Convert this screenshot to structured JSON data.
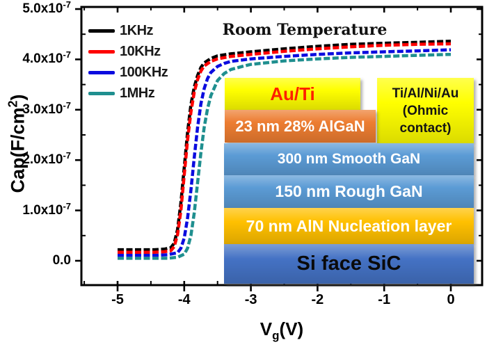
{
  "figure": {
    "title": "Room Temperature",
    "x_axis": {
      "title_main": "V",
      "title_sub": "g",
      "title_close": "(V)",
      "ticks": [
        {
          "v": -5,
          "label": "-5"
        },
        {
          "v": -4,
          "label": "-4"
        },
        {
          "v": -3,
          "label": "-3"
        },
        {
          "v": -2,
          "label": "-2"
        },
        {
          "v": -1,
          "label": "-1"
        },
        {
          "v": 0,
          "label": "0"
        }
      ]
    },
    "y_axis": {
      "title_main": "Cap(F/cm",
      "title_sup": "2",
      "title_close": ")",
      "ticks": [
        {
          "v": 0,
          "main": "0.0",
          "sup": ""
        },
        {
          "v": 1,
          "main": "1.0x10",
          "sup": "-7"
        },
        {
          "v": 2,
          "main": "2.0x10",
          "sup": "-7"
        },
        {
          "v": 3,
          "main": "3.0x10",
          "sup": "-7"
        },
        {
          "v": 4,
          "main": "4.0x10",
          "sup": "-7"
        },
        {
          "v": 5,
          "main": "5.0x10",
          "sup": "-7"
        }
      ]
    },
    "legend": {
      "items": [
        {
          "label": "1KHz",
          "color": "#000000"
        },
        {
          "label": "10KHz",
          "color": "#fe0000"
        },
        {
          "label": "100KHz",
          "color": "#0b0bdf"
        },
        {
          "label": "1MHz",
          "color": "#1f8f8f"
        }
      ]
    }
  },
  "chart_data": {
    "type": "line",
    "title": "Room Temperature",
    "xlabel": "Vg(V)",
    "ylabel": "Cap(F/cm2)",
    "x_units": "V",
    "y_units": "F/cm2 (values in 1e-7)",
    "xlim": [
      -5.54,
      0.47
    ],
    "ylim_1e-7": [
      -0.48,
      5.04
    ],
    "x_ticks": [
      -5,
      -4,
      -3,
      -2,
      -1,
      0
    ],
    "x_minor_ticks": [
      -5.5,
      -4.5,
      -3.5,
      -2.5,
      -1.5,
      -0.5
    ],
    "y_ticks_1e-7": [
      0,
      1,
      2,
      3,
      4,
      5
    ],
    "y_minor_ticks_1e-7": [
      0.5,
      1.5,
      2.5,
      3.5,
      4.5
    ],
    "grid": false,
    "legend_position": "upper-left-inside",
    "series": [
      {
        "name": "1MHz",
        "color": "#1f8f8f",
        "points": [
          [
            -5,
            0.05
          ],
          [
            -4.8,
            0.05
          ],
          [
            -4.6,
            0.05
          ],
          [
            -4.4,
            0.05
          ],
          [
            -4.25,
            0.05
          ],
          [
            -4.1,
            0.07
          ],
          [
            -4,
            0.13
          ],
          [
            -3.95,
            0.25
          ],
          [
            -3.9,
            0.5
          ],
          [
            -3.85,
            0.95
          ],
          [
            -3.8,
            1.55
          ],
          [
            -3.75,
            2.15
          ],
          [
            -3.7,
            2.65
          ],
          [
            -3.65,
            3.02
          ],
          [
            -3.6,
            3.28
          ],
          [
            -3.5,
            3.58
          ],
          [
            -3.4,
            3.72
          ],
          [
            -3.3,
            3.8
          ],
          [
            -3.1,
            3.87
          ],
          [
            -3,
            3.9
          ],
          [
            -2.5,
            3.97
          ],
          [
            -2,
            4.01
          ],
          [
            -1.5,
            4.04
          ],
          [
            -1,
            4.06
          ],
          [
            -0.5,
            4.08
          ],
          [
            0,
            4.1
          ]
        ]
      },
      {
        "name": "100KHz",
        "color": "#0b0bdf",
        "points": [
          [
            -5,
            0.11
          ],
          [
            -4.8,
            0.11
          ],
          [
            -4.6,
            0.11
          ],
          [
            -4.4,
            0.11
          ],
          [
            -4.25,
            0.12
          ],
          [
            -4.1,
            0.16
          ],
          [
            -4.05,
            0.25
          ],
          [
            -4,
            0.45
          ],
          [
            -3.95,
            0.85
          ],
          [
            -3.9,
            1.4
          ],
          [
            -3.85,
            2.05
          ],
          [
            -3.8,
            2.65
          ],
          [
            -3.75,
            3.12
          ],
          [
            -3.7,
            3.42
          ],
          [
            -3.65,
            3.62
          ],
          [
            -3.6,
            3.74
          ],
          [
            -3.5,
            3.86
          ],
          [
            -3.4,
            3.92
          ],
          [
            -3.3,
            3.96
          ],
          [
            -3,
            4.01
          ],
          [
            -2.5,
            4.06
          ],
          [
            -2,
            4.1
          ],
          [
            -1.5,
            4.13
          ],
          [
            -1,
            4.15
          ],
          [
            -0.5,
            4.17
          ],
          [
            0,
            4.19
          ]
        ]
      },
      {
        "name": "1KHz",
        "color": "#000000",
        "points": [
          [
            -5,
            0.22
          ],
          [
            -4.8,
            0.22
          ],
          [
            -4.6,
            0.22
          ],
          [
            -4.45,
            0.22
          ],
          [
            -4.3,
            0.23
          ],
          [
            -4.2,
            0.26
          ],
          [
            -4.15,
            0.35
          ],
          [
            -4.1,
            0.62
          ],
          [
            -4.05,
            1.15
          ],
          [
            -4,
            1.85
          ],
          [
            -3.95,
            2.55
          ],
          [
            -3.9,
            3.1
          ],
          [
            -3.85,
            3.45
          ],
          [
            -3.8,
            3.68
          ],
          [
            -3.75,
            3.84
          ],
          [
            -3.7,
            3.93
          ],
          [
            -3.6,
            4.02
          ],
          [
            -3.5,
            4.07
          ],
          [
            -3.3,
            4.11
          ],
          [
            -3,
            4.15
          ],
          [
            -2.5,
            4.21
          ],
          [
            -2,
            4.26
          ],
          [
            -1.5,
            4.3
          ],
          [
            -1,
            4.32
          ],
          [
            -0.5,
            4.34
          ],
          [
            0,
            4.36
          ]
        ]
      },
      {
        "name": "10KHz",
        "color": "#fe0000",
        "points": [
          [
            -5,
            0.17
          ],
          [
            -4.8,
            0.17
          ],
          [
            -4.6,
            0.17
          ],
          [
            -4.45,
            0.17
          ],
          [
            -4.3,
            0.18
          ],
          [
            -4.2,
            0.2
          ],
          [
            -4.15,
            0.28
          ],
          [
            -4.1,
            0.52
          ],
          [
            -4.05,
            1.0
          ],
          [
            -4,
            1.7
          ],
          [
            -3.95,
            2.4
          ],
          [
            -3.9,
            2.95
          ],
          [
            -3.85,
            3.35
          ],
          [
            -3.8,
            3.6
          ],
          [
            -3.75,
            3.77
          ],
          [
            -3.7,
            3.87
          ],
          [
            -3.6,
            3.96
          ],
          [
            -3.5,
            4.01
          ],
          [
            -3.3,
            4.06
          ],
          [
            -3,
            4.1
          ],
          [
            -2.5,
            4.16
          ],
          [
            -2,
            4.21
          ],
          [
            -1.5,
            4.25
          ],
          [
            -1,
            4.28
          ],
          [
            -0.5,
            4.3
          ],
          [
            0,
            4.31
          ]
        ]
      }
    ]
  },
  "inset": {
    "layers": {
      "au_ti": {
        "label": "Au/Ti",
        "bg": "#ffff00",
        "text": "#fe2000"
      },
      "ohmic": {
        "label": "Ti/Al/Ni/Au (Ohmic contact)",
        "bg": "#ffff00",
        "text": "#141414"
      },
      "algan": {
        "label": "23 nm 28% AlGaN",
        "bg": "#ed7d31",
        "text": "#ffffff"
      },
      "smooth_gan": {
        "label": "300 nm Smooth GaN",
        "bg": "#5b9bd5",
        "text": "#ffffff"
      },
      "rough_gan": {
        "label": "150 nm Rough GaN",
        "bg": "#5b9bd5",
        "text": "#ffffff"
      },
      "aln": {
        "label": "70 nm AlN Nucleation layer",
        "bg": "#ffc000",
        "text": "#ffffff"
      },
      "sic": {
        "label": "Si face SiC",
        "bg": "#4472c4",
        "text": "#0a0a0a"
      }
    }
  }
}
